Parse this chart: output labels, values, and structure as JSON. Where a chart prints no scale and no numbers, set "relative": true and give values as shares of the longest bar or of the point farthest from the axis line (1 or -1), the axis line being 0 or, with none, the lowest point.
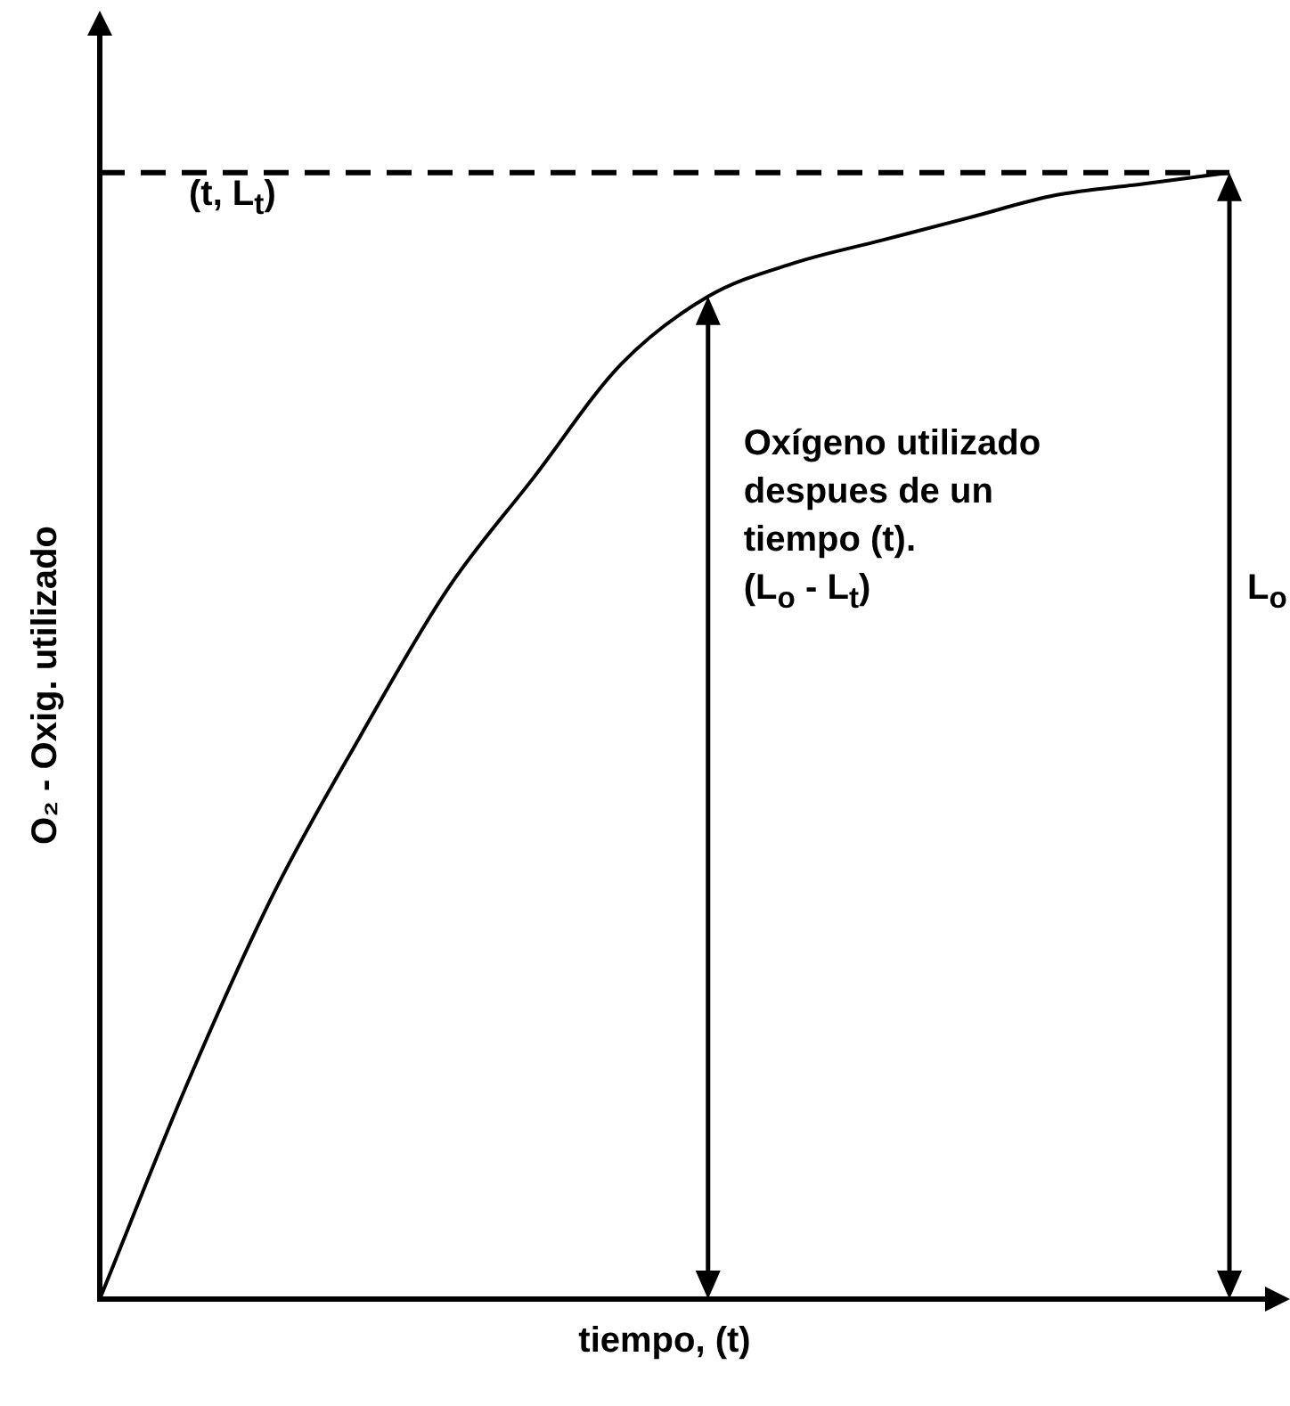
{
  "chart_data": {
    "type": "line",
    "relative": true,
    "xlabel": "tiempo, (t)",
    "ylabel": "O₂ - Oxig. utilizado",
    "categories": [
      null,
      null,
      null,
      null,
      null,
      null,
      null,
      null,
      null,
      null,
      null,
      null,
      null,
      null
    ],
    "series": [
      {
        "color": "#000000",
        "values": [
          0,
          0.19,
          0.36,
          0.5,
          0.63,
          0.73,
          0.83,
          0.89,
          0.92,
          0.94,
          0.96,
          0.98,
          0.99,
          1
        ]
      }
    ],
    "ref_lines": [
      {
        "axis": "y",
        "value": 1,
        "line_style": "dashed",
        "color": "#000000"
      }
    ],
    "annotations": [
      "(t, L$_{t}$)",
      "Oxígeno utilizado despues de un tiempo (t).",
      "(L$_{o}$ - L$_{t}$)",
      "L$_{o}$"
    ],
    "grid": false,
    "legend": false,
    "marker": "none",
    "line_style": "solid"
  }
}
